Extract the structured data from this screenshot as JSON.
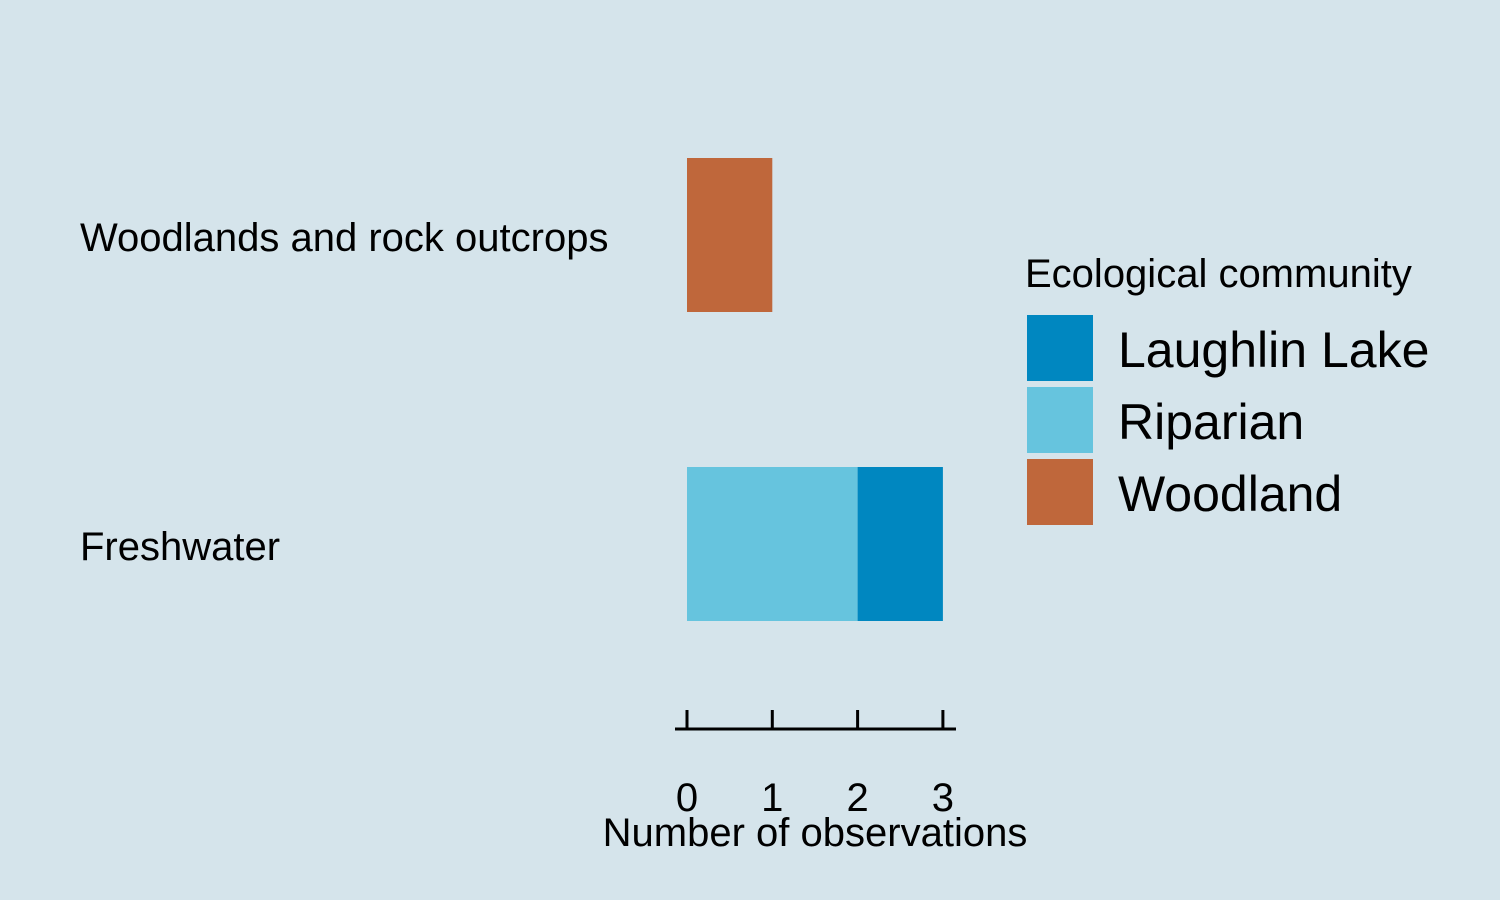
{
  "chart_data": {
    "type": "bar",
    "orientation": "horizontal",
    "stacked": true,
    "categories": [
      "Woodlands and rock outcrops",
      "Freshwater"
    ],
    "series": [
      {
        "name": "Riparian",
        "values": [
          0,
          2
        ]
      },
      {
        "name": "Laughlin Lake",
        "values": [
          0,
          1
        ]
      },
      {
        "name": "Woodland",
        "values": [
          1,
          0
        ]
      }
    ],
    "xlabel": "Number of observations",
    "ylabel": "",
    "xlim": [
      0,
      3
    ],
    "xticks": [
      "0",
      "1",
      "2",
      "3"
    ],
    "grid": false,
    "legend": {
      "title": "Ecological community",
      "placement": "right",
      "entries": [
        "Laughlin Lake",
        "Riparian",
        "Woodland"
      ]
    }
  },
  "colors": {
    "background": "#d5e4eb",
    "Laughlin Lake": "#0087c0",
    "Riparian": "#66c4de",
    "Woodland": "#bf673b"
  }
}
